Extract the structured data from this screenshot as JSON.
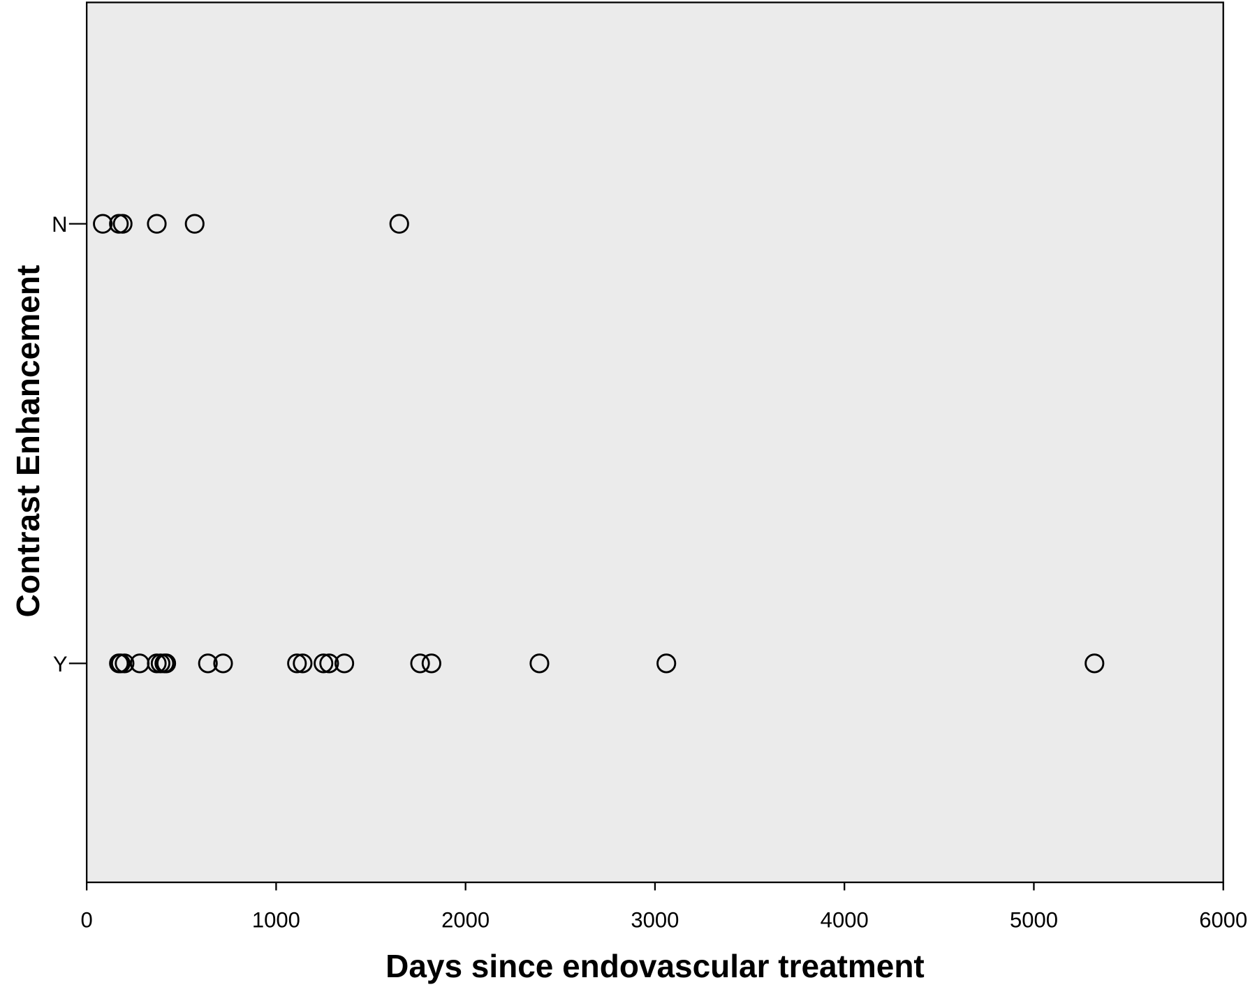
{
  "chart_data": {
    "type": "strip",
    "x_label": "Days since endovascular treatment",
    "y_label": "Contrast Enhancement",
    "categories": [
      "N",
      "Y"
    ],
    "values": [
      [
        85,
        170,
        190,
        370,
        570,
        1650
      ],
      [
        170,
        180,
        200,
        280,
        370,
        390,
        410,
        420,
        640,
        720,
        1110,
        1140,
        1250,
        1280,
        1360,
        1760,
        1820,
        2390,
        3060,
        5320
      ]
    ],
    "xlim": [
      0,
      6000
    ],
    "xticks": [
      0,
      1000,
      2000,
      3000,
      4000,
      5000,
      6000
    ],
    "background": "#ebebeb",
    "marker_color": "#000000"
  }
}
